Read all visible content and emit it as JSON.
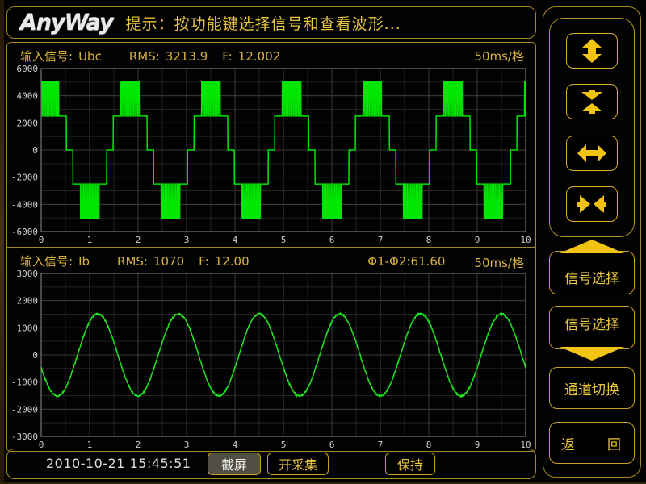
{
  "header": {
    "logo": "AnyWay",
    "prompt": "提示：按功能键选择信号和查看波形..."
  },
  "panel1": {
    "signal_label": "输入信号:",
    "signal_value": "Ubc",
    "rms_label": "RMS:",
    "rms_value": "3213.9",
    "freq_label": "F:",
    "freq_value": "12.002",
    "timebase": "50ms/格"
  },
  "panel2": {
    "signal_label": "输入信号:",
    "signal_value": "Ib",
    "rms_label": "RMS:",
    "rms_value": "1070",
    "freq_label": "F:",
    "freq_value": "12.00",
    "phase_label": "Φ1-Φ2:",
    "phase_value": "61.60",
    "timebase": "50ms/格"
  },
  "sidebar": {
    "signal_select_up_label": "信号选择",
    "signal_select_down_label": "信号选择",
    "channel_switch_label": "通道切换",
    "return_label": "返　　回"
  },
  "bottom": {
    "timestamp": "2010-10-21 15:45:51",
    "screenshot_label": "截屏",
    "acquire_label": "开采集",
    "hold_label": "保持"
  },
  "colors": {
    "gold_border": "#a5861f",
    "gold_text": "#e8c53e",
    "icon_gold": "#f2c40f",
    "grid_minor": "#242424",
    "grid_major": "#3a3a3a",
    "axis_gray": "#8f8f8f",
    "tick_text": "#cfcfcf"
  },
  "chart_data": [
    {
      "type": "line",
      "waveform": "multilevel_pwm",
      "signal": "Ubc",
      "rms": 3213.9,
      "frequency_hz": 12.002,
      "time_per_div": "50ms",
      "x_range": [
        0,
        10
      ],
      "x_major_ticks": [
        0,
        1,
        2,
        3,
        4,
        5,
        6,
        7,
        8,
        9,
        10
      ],
      "x_minor_step": 0.5,
      "y_range": [
        -6000,
        6000
      ],
      "y_major_ticks": [
        6000,
        4000,
        2000,
        0,
        -2000,
        -4000,
        -6000
      ],
      "y_minor_step": 1000,
      "levels": [
        -5000,
        -2500,
        0,
        2500,
        5000
      ],
      "level_step": 2500,
      "period_div": 1.6664,
      "peak_center_div": 0.17,
      "carrier_per_div": 32,
      "pwm_duty": 0.78,
      "grid": true,
      "legend": "none",
      "color": "#00e600"
    },
    {
      "type": "line",
      "waveform": "sine",
      "signal": "Ib",
      "rms": 1070,
      "frequency_hz": 12.0,
      "phase_to_ch1_deg": 61.6,
      "time_per_div": "50ms",
      "x_range": [
        0,
        10
      ],
      "x_major_ticks": [
        0,
        1,
        2,
        3,
        4,
        5,
        6,
        7,
        8,
        9,
        10
      ],
      "x_minor_step": 0.5,
      "y_range": [
        -3000,
        3000
      ],
      "y_major_ticks": [
        3000,
        2000,
        1000,
        0,
        -1000,
        -2000,
        -3000
      ],
      "y_minor_step": 500,
      "amplitude": 1513,
      "zero_cross_rising_div": 0.75,
      "period_div": 1.6664,
      "noise_amplitude": 26,
      "grid": true,
      "legend": "none",
      "color": "#1ee61e"
    }
  ]
}
